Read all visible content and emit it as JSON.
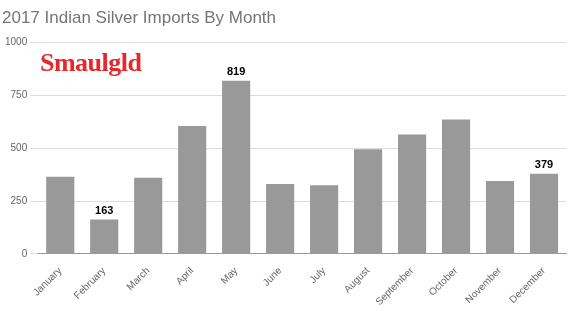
{
  "chart_data": {
    "type": "bar",
    "title": "2017 Indian Silver Imports By Month",
    "watermark": "Smaulgld",
    "categories": [
      "January",
      "February",
      "March",
      "April",
      "May",
      "June",
      "July",
      "August",
      "September",
      "October",
      "November",
      "December"
    ],
    "values": [
      365,
      163,
      360,
      605,
      819,
      330,
      325,
      495,
      565,
      635,
      345,
      379
    ],
    "value_labels": [
      null,
      "163",
      null,
      null,
      "819",
      null,
      null,
      null,
      null,
      null,
      null,
      "379"
    ],
    "color": "#999999",
    "ylim": [
      0,
      1000
    ],
    "yticks": [
      0,
      250,
      500,
      750,
      1000
    ],
    "grid": true
  }
}
